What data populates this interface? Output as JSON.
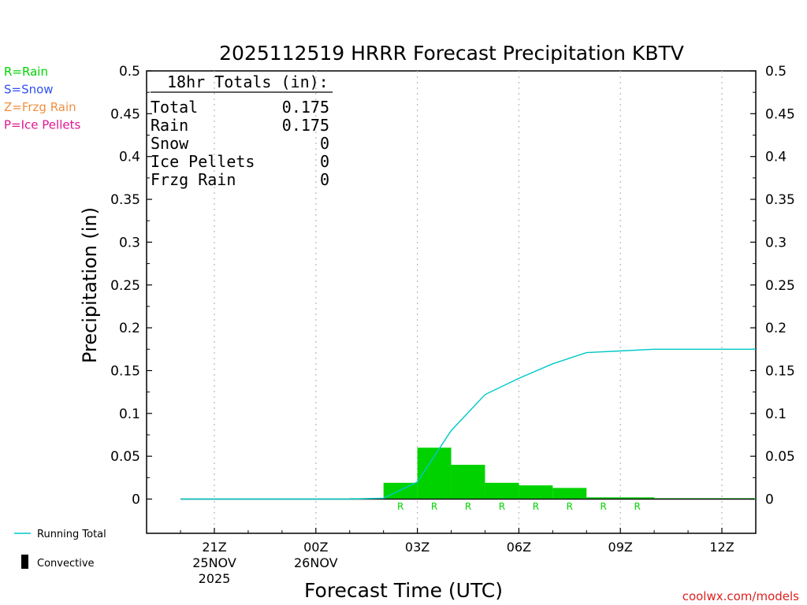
{
  "chart_data": {
    "type": "bar",
    "title": "2025112519 HRRR Forecast Precipitation KBTV",
    "ylabel": "Precipitation (in)",
    "xlabel": "Forecast Time (UTC)",
    "ylim": [
      -0.04,
      0.5
    ],
    "y_ticks": [
      "0.5",
      "0.45",
      "0.4",
      "0.35",
      "0.3",
      "0.25",
      "0.2",
      "0.15",
      "0.1",
      "0.05",
      "0"
    ],
    "x_ticks": [
      {
        "line1": "21Z",
        "line2": "25NOV",
        "line3": "2025"
      },
      {
        "line1": "00Z",
        "line2": "26NOV",
        "line3": ""
      },
      {
        "line1": "03Z",
        "line2": "",
        "line3": ""
      },
      {
        "line1": "06Z",
        "line2": "",
        "line3": ""
      },
      {
        "line1": "09Z",
        "line2": "",
        "line3": ""
      },
      {
        "line1": "12Z",
        "line2": "",
        "line3": ""
      }
    ],
    "hours": [
      "20Z",
      "21Z",
      "22Z",
      "23Z",
      "00Z",
      "01Z",
      "02Z",
      "03Z",
      "04Z",
      "05Z",
      "06Z",
      "07Z",
      "08Z",
      "09Z",
      "10Z",
      "11Z",
      "12Z",
      "13Z"
    ],
    "hourly_values": [
      0,
      0,
      0,
      0,
      0,
      0,
      0.001,
      0.019,
      0.06,
      0.04,
      0.019,
      0.016,
      0.013,
      0.002,
      0.002,
      0.001,
      0.001,
      0.001
    ],
    "running_total": [
      0,
      0,
      0,
      0,
      0,
      0,
      0.001,
      0.02,
      0.08,
      0.122,
      0.141,
      0.158,
      0.171,
      0.173,
      0.175,
      0.175,
      0.175,
      0.175
    ],
    "ptype_markers": [
      "",
      "",
      "",
      "",
      "",
      "",
      "",
      "R",
      "R",
      "R",
      "R",
      "R",
      "R",
      "R",
      "R",
      "",
      "",
      ""
    ],
    "grid": "vertical dotted",
    "series": [
      {
        "name": "Running Total",
        "color": "#00c8c8"
      },
      {
        "name": "Convective",
        "color": "#000000"
      }
    ],
    "bar_color": "#00d200"
  },
  "ptype_legend": [
    {
      "label": "R=Rain",
      "color": "#00d200"
    },
    {
      "label": "S=Snow",
      "color": "#3050f0"
    },
    {
      "label": "Z=Frzg Rain",
      "color": "#f09040"
    },
    {
      "label": "P=Ice Pellets",
      "color": "#e01890"
    }
  ],
  "totals": {
    "header": "18hr Totals (in):",
    "rows": [
      {
        "label": "Total",
        "value": "0.175"
      },
      {
        "label": "Rain",
        "value": "0.175"
      },
      {
        "label": "Snow",
        "value": "0"
      },
      {
        "label": "Ice Pellets",
        "value": "0"
      },
      {
        "label": "Frzg Rain",
        "value": "0"
      }
    ]
  },
  "legend_bottom": {
    "running_total": "Running Total",
    "convective": "Convective"
  },
  "credit": "coolwx.com/models"
}
